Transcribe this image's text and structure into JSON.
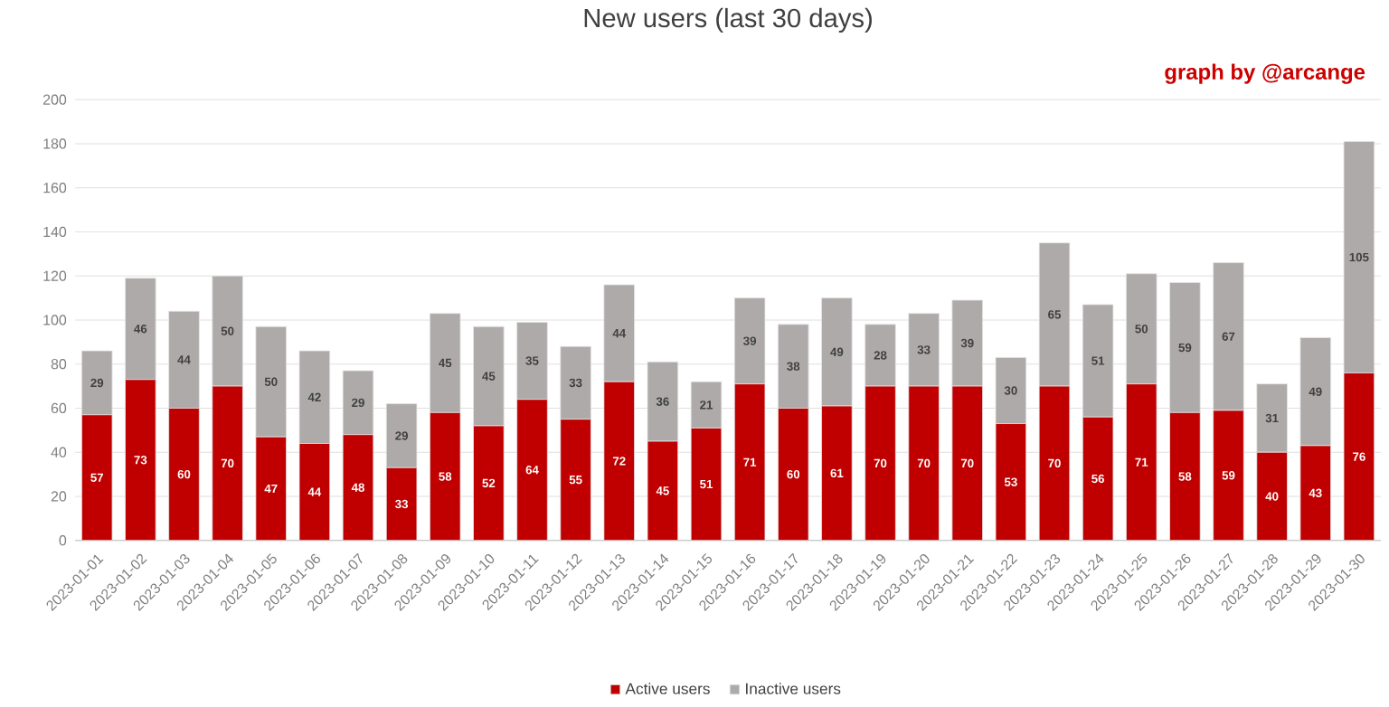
{
  "chart_data": {
    "type": "bar",
    "title": "New users (last 30 days)",
    "annotations": [
      "graph by @arcange"
    ],
    "categories": [
      "2023-01-01",
      "2023-01-02",
      "2023-01-03",
      "2023-01-04",
      "2023-01-05",
      "2023-01-06",
      "2023-01-07",
      "2023-01-08",
      "2023-01-09",
      "2023-01-10",
      "2023-01-11",
      "2023-01-12",
      "2023-01-13",
      "2023-01-14",
      "2023-01-15",
      "2023-01-16",
      "2023-01-17",
      "2023-01-18",
      "2023-01-19",
      "2023-01-20",
      "2023-01-21",
      "2023-01-22",
      "2023-01-23",
      "2023-01-24",
      "2023-01-25",
      "2023-01-26",
      "2023-01-27",
      "2023-01-28",
      "2023-01-29",
      "2023-01-30"
    ],
    "series": [
      {
        "name": "Active users",
        "color": "#c00000",
        "values": [
          57,
          73,
          60,
          70,
          47,
          44,
          48,
          33,
          58,
          52,
          64,
          55,
          72,
          45,
          51,
          71,
          60,
          61,
          70,
          70,
          70,
          53,
          70,
          56,
          71,
          58,
          59,
          40,
          43,
          76
        ]
      },
      {
        "name": "Inactive users",
        "color": "#aeaaaa",
        "values": [
          29,
          46,
          44,
          50,
          50,
          42,
          29,
          29,
          45,
          45,
          35,
          33,
          44,
          36,
          21,
          39,
          38,
          49,
          28,
          33,
          39,
          30,
          65,
          51,
          50,
          59,
          67,
          31,
          49,
          105
        ]
      }
    ],
    "stacked": true,
    "data_labels": true,
    "ylim": [
      0,
      200
    ],
    "yticks": [
      0,
      20,
      40,
      60,
      80,
      100,
      120,
      140,
      160,
      180,
      200
    ],
    "grid": "y",
    "legend": "bottom"
  }
}
